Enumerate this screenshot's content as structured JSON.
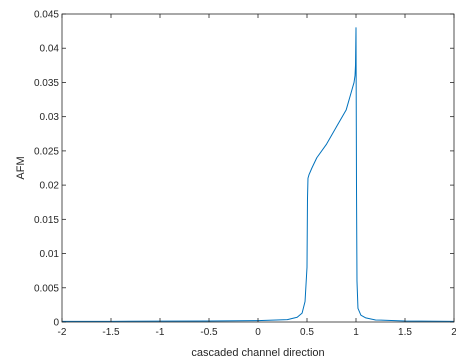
{
  "chart_data": {
    "type": "line",
    "title": "",
    "xlabel": "cascaded channel direction",
    "ylabel": "AFM",
    "xlim": [
      -2,
      2
    ],
    "ylim": [
      0,
      0.045
    ],
    "xticks": [
      -2,
      -1.5,
      -1,
      -0.5,
      0,
      0.5,
      1,
      1.5,
      2
    ],
    "xtick_labels": [
      "-2",
      "-1.5",
      "-1",
      "-0.5",
      "0",
      "0.5",
      "1",
      "1.5",
      "2"
    ],
    "yticks": [
      0,
      0.005,
      0.01,
      0.015,
      0.02,
      0.025,
      0.03,
      0.035,
      0.04,
      0.045
    ],
    "ytick_labels": [
      "0",
      "0.005",
      "0.01",
      "0.015",
      "0.02",
      "0.025",
      "0.03",
      "0.035",
      "0.04",
      "0.045"
    ],
    "grid": false,
    "line_color": "#0072BD",
    "series": [
      {
        "x": [
          -2,
          -1.5,
          -1,
          -0.5,
          0,
          0.3,
          0.4,
          0.45,
          0.48,
          0.5,
          0.505,
          0.51,
          0.52,
          0.55,
          0.6,
          0.7,
          0.8,
          0.9,
          0.95,
          0.98,
          0.99,
          0.995,
          1.0,
          1.005,
          1.01,
          1.02,
          1.05,
          1.1,
          1.2,
          1.5,
          2
        ],
        "y": [
          0.0001,
          0.0001,
          0.00012,
          0.00015,
          0.0002,
          0.00035,
          0.0007,
          0.0013,
          0.003,
          0.008,
          0.018,
          0.021,
          0.0215,
          0.0225,
          0.024,
          0.026,
          0.0285,
          0.031,
          0.0335,
          0.035,
          0.036,
          0.0375,
          0.043,
          0.02,
          0.006,
          0.002,
          0.001,
          0.0006,
          0.0003,
          0.00015,
          0.0001
        ]
      }
    ]
  }
}
